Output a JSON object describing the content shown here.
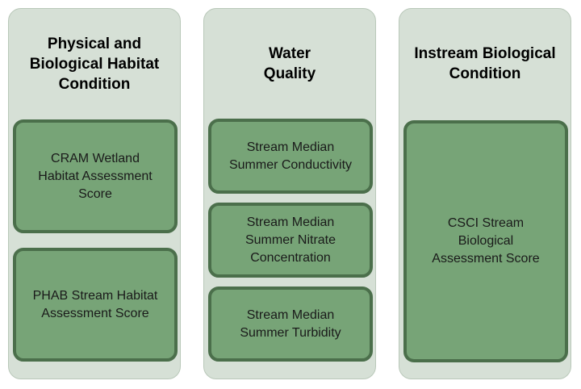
{
  "columns": [
    {
      "title": "Physical and\nBiological Habitat\nCondition",
      "items": [
        {
          "label": "CRAM Wetland\nHabitat Assessment\nScore"
        },
        {
          "label": "PHAB Stream Habitat\nAssessment Score"
        }
      ]
    },
    {
      "title": "Water\nQuality",
      "items": [
        {
          "label": "Stream Median\nSummer Conductivity"
        },
        {
          "label": "Stream Median\nSummer Nitrate\nConcentration"
        },
        {
          "label": "Stream Median\nSummer Turbidity"
        }
      ]
    },
    {
      "title": "Instream Biological\nCondition",
      "items": [
        {
          "label": "CSCI Stream\nBiological\nAssessment Score"
        }
      ]
    }
  ],
  "colors": {
    "column_fill": "#d6e0d6",
    "box_fill": "#77a477",
    "box_border": "#4b6f4b"
  }
}
